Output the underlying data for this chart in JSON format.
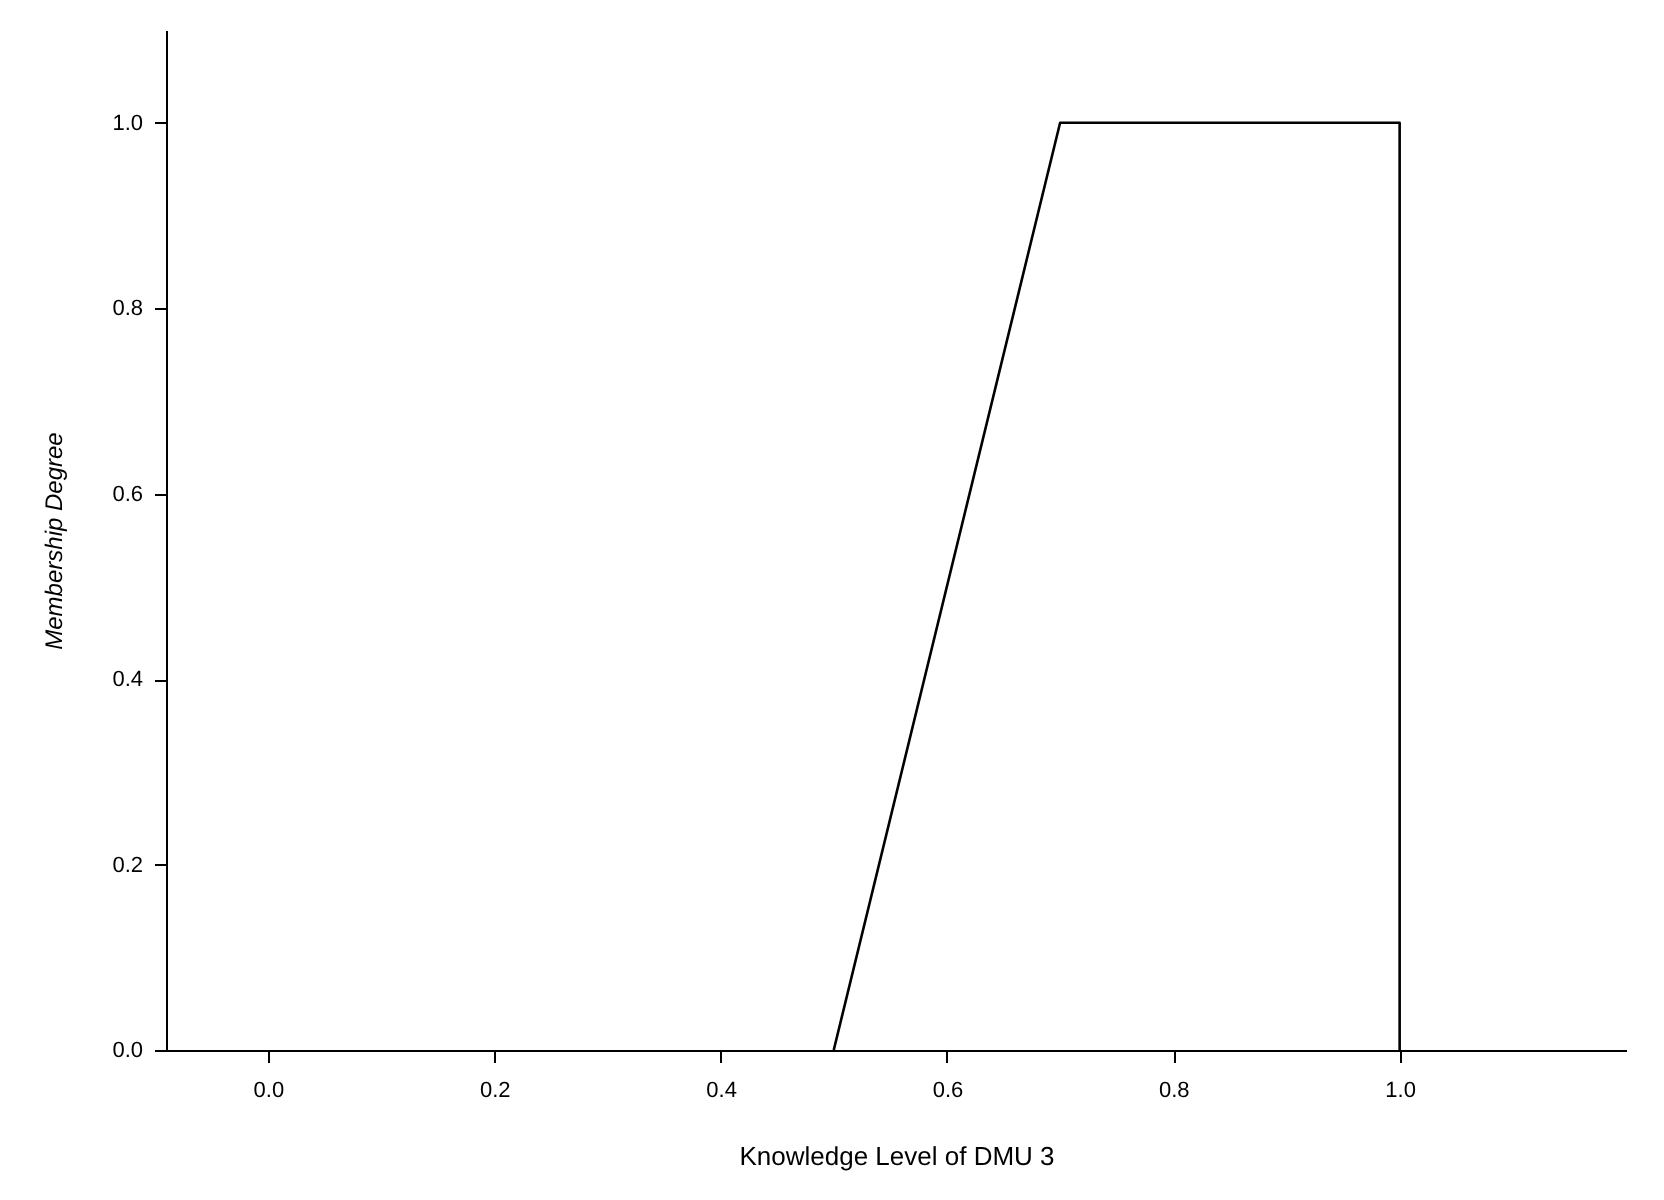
{
  "chart_data": {
    "type": "line",
    "xlabel": "Knowledge Level of DMU 3",
    "ylabel": "Membership Degree",
    "series": [
      {
        "color": "#000000",
        "x": [
          0.5,
          0.7,
          1.0,
          1.0
        ],
        "values": [
          0,
          1,
          1,
          0
        ]
      }
    ],
    "xlim": [
      -0.09,
      1.2
    ],
    "ylim": [
      0,
      1.1
    ],
    "xticks": [
      {
        "value": 0,
        "label": "0.0"
      },
      {
        "value": 0.2,
        "label": "0.2"
      },
      {
        "value": 0.4,
        "label": "0.4"
      },
      {
        "value": 0.6,
        "label": "0.6"
      },
      {
        "value": 0.8,
        "label": "0.8"
      },
      {
        "value": 1,
        "label": "1.0"
      }
    ],
    "yticks": [
      {
        "value": 0,
        "label": "0.0"
      },
      {
        "value": 0.2,
        "label": "0.2"
      },
      {
        "value": 0.4,
        "label": "0.4"
      },
      {
        "value": 0.6,
        "label": "0.6"
      },
      {
        "value": 0.8,
        "label": "0.8"
      },
      {
        "value": 1,
        "label": "1.0"
      }
    ],
    "grid": false,
    "marker": "none",
    "line_style": "solid"
  }
}
